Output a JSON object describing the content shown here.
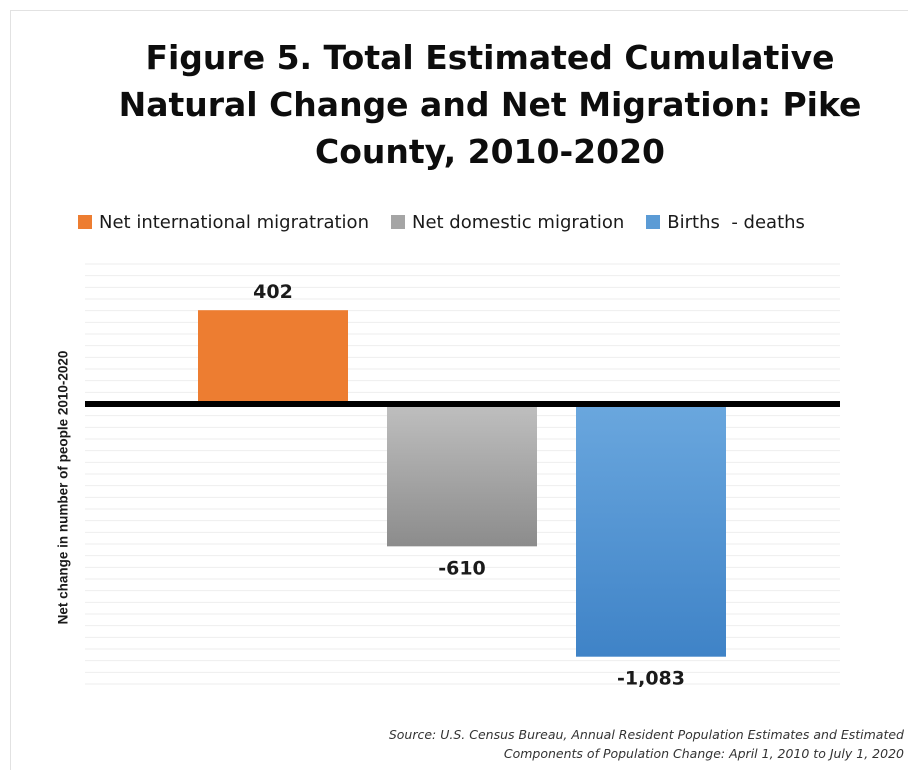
{
  "chart_data": {
    "type": "bar",
    "title": "Figure 5. Total Estimated Cumulative\nNatural Change and Net Migration:  Pike\nCounty, 2010-2020",
    "ylabel": "Net change in number of people 2010-2020",
    "xlabel": "",
    "categories": [
      "Net international migratration",
      "Net domestic migration",
      "Births  - deaths"
    ],
    "values": [
      402,
      -610,
      -1083
    ],
    "value_labels": [
      "402",
      "-610",
      "-1,083"
    ],
    "colors": [
      "#ed7d31",
      "#a5a5a5",
      "#5b9bd5"
    ],
    "ylim": [
      -1200,
      600
    ],
    "grid": true,
    "legend_position": "top",
    "source": "Source: U.S. Census Bureau, Annual Resident Population Estimates and Estimated\nComponents of Population Change: April 1, 2010 to July 1, 2020"
  }
}
